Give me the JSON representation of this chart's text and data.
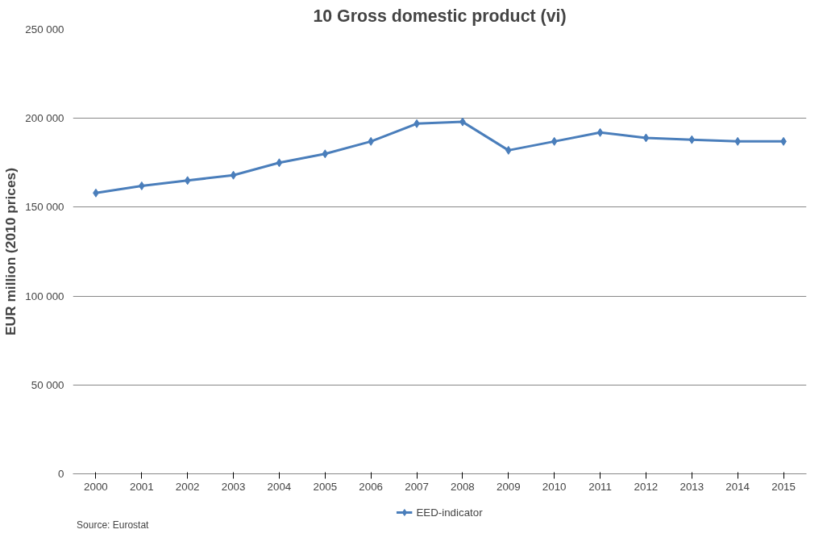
{
  "chart_data": {
    "type": "line",
    "title": "10 Gross domestic product (vi)",
    "ylabel": "EUR million (2010 prices)",
    "categories": [
      "2000",
      "2001",
      "2002",
      "2003",
      "2004",
      "2005",
      "2006",
      "2007",
      "2008",
      "2009",
      "2010",
      "2011",
      "2012",
      "2013",
      "2014",
      "2015"
    ],
    "series": [
      {
        "name": "EED-indicator",
        "color": "#4a7ebb",
        "values": [
          158000,
          162000,
          165000,
          168000,
          175000,
          180000,
          187000,
          197000,
          198000,
          182000,
          187000,
          192000,
          189000,
          188000,
          187000,
          187000
        ]
      }
    ],
    "ylim": [
      0,
      250000
    ],
    "yticks": [
      {
        "value": 0,
        "label": "0"
      },
      {
        "value": 50000,
        "label": "50 000"
      },
      {
        "value": 100000,
        "label": "100 000"
      },
      {
        "value": 150000,
        "label": "150 000"
      },
      {
        "value": 200000,
        "label": "200 000"
      },
      {
        "value": 250000,
        "label": "250 000"
      }
    ],
    "grid": "y",
    "legend": "bottom",
    "marker": "diamond",
    "line_style": "solid",
    "annotations": [
      "Source: Eurostat"
    ]
  }
}
